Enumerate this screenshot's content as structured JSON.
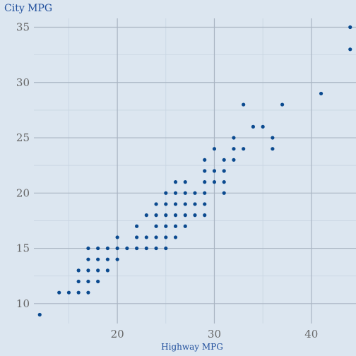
{
  "chart_data": {
    "type": "scatter",
    "title": "",
    "xlabel": "Highway MPG",
    "ylabel": "City MPG",
    "xlim": [
      11.4,
      44.6
    ],
    "ylim": [
      8.2,
      35.8
    ],
    "x_ticks": [
      20,
      30,
      40
    ],
    "x_minor_ticks": [
      15,
      25,
      35
    ],
    "y_ticks": [
      10,
      15,
      20,
      25,
      30,
      35
    ],
    "y_minor_ticks": [
      12.5,
      17.5,
      22.5,
      27.5,
      32.5
    ],
    "grid": true,
    "legend": "none",
    "colors": {
      "background": "#dce6f0",
      "point": "#0b4a8f",
      "grid_major": "#a9b4c2",
      "grid_minor": "#c9d5e2",
      "label": "#1f4e9c",
      "tick": "#666666"
    },
    "points": [
      {
        "x": 12,
        "y": 9
      },
      {
        "x": 14,
        "y": 11
      },
      {
        "x": 15,
        "y": 11
      },
      {
        "x": 16,
        "y": 11
      },
      {
        "x": 17,
        "y": 11
      },
      {
        "x": 16,
        "y": 12
      },
      {
        "x": 17,
        "y": 12
      },
      {
        "x": 18,
        "y": 12
      },
      {
        "x": 16,
        "y": 13
      },
      {
        "x": 17,
        "y": 13
      },
      {
        "x": 18,
        "y": 13
      },
      {
        "x": 19,
        "y": 13
      },
      {
        "x": 17,
        "y": 14
      },
      {
        "x": 18,
        "y": 14
      },
      {
        "x": 19,
        "y": 14
      },
      {
        "x": 20,
        "y": 14
      },
      {
        "x": 17,
        "y": 15
      },
      {
        "x": 18,
        "y": 15
      },
      {
        "x": 19,
        "y": 15
      },
      {
        "x": 20,
        "y": 15
      },
      {
        "x": 21,
        "y": 15
      },
      {
        "x": 22,
        "y": 15
      },
      {
        "x": 23,
        "y": 15
      },
      {
        "x": 24,
        "y": 15
      },
      {
        "x": 25,
        "y": 15
      },
      {
        "x": 20,
        "y": 16
      },
      {
        "x": 22,
        "y": 16
      },
      {
        "x": 23,
        "y": 16
      },
      {
        "x": 24,
        "y": 16
      },
      {
        "x": 25,
        "y": 16
      },
      {
        "x": 26,
        "y": 16
      },
      {
        "x": 22,
        "y": 17
      },
      {
        "x": 24,
        "y": 17
      },
      {
        "x": 25,
        "y": 17
      },
      {
        "x": 26,
        "y": 17
      },
      {
        "x": 27,
        "y": 17
      },
      {
        "x": 23,
        "y": 18
      },
      {
        "x": 24,
        "y": 18
      },
      {
        "x": 25,
        "y": 18
      },
      {
        "x": 26,
        "y": 18
      },
      {
        "x": 27,
        "y": 18
      },
      {
        "x": 28,
        "y": 18
      },
      {
        "x": 29,
        "y": 18
      },
      {
        "x": 24,
        "y": 19
      },
      {
        "x": 25,
        "y": 19
      },
      {
        "x": 26,
        "y": 19
      },
      {
        "x": 27,
        "y": 19
      },
      {
        "x": 28,
        "y": 19
      },
      {
        "x": 29,
        "y": 19
      },
      {
        "x": 25,
        "y": 20
      },
      {
        "x": 26,
        "y": 20
      },
      {
        "x": 27,
        "y": 20
      },
      {
        "x": 28,
        "y": 20
      },
      {
        "x": 29,
        "y": 20
      },
      {
        "x": 31,
        "y": 20
      },
      {
        "x": 26,
        "y": 21
      },
      {
        "x": 27,
        "y": 21
      },
      {
        "x": 29,
        "y": 21
      },
      {
        "x": 30,
        "y": 21
      },
      {
        "x": 31,
        "y": 21
      },
      {
        "x": 29,
        "y": 22
      },
      {
        "x": 30,
        "y": 22
      },
      {
        "x": 31,
        "y": 22
      },
      {
        "x": 29,
        "y": 23
      },
      {
        "x": 31,
        "y": 23
      },
      {
        "x": 32,
        "y": 23
      },
      {
        "x": 30,
        "y": 24
      },
      {
        "x": 32,
        "y": 24
      },
      {
        "x": 33,
        "y": 24
      },
      {
        "x": 36,
        "y": 24
      },
      {
        "x": 32,
        "y": 25
      },
      {
        "x": 36,
        "y": 25
      },
      {
        "x": 34,
        "y": 26
      },
      {
        "x": 35,
        "y": 26
      },
      {
        "x": 33,
        "y": 28
      },
      {
        "x": 37,
        "y": 28
      },
      {
        "x": 41,
        "y": 29
      },
      {
        "x": 44,
        "y": 33
      },
      {
        "x": 44,
        "y": 35
      }
    ]
  }
}
